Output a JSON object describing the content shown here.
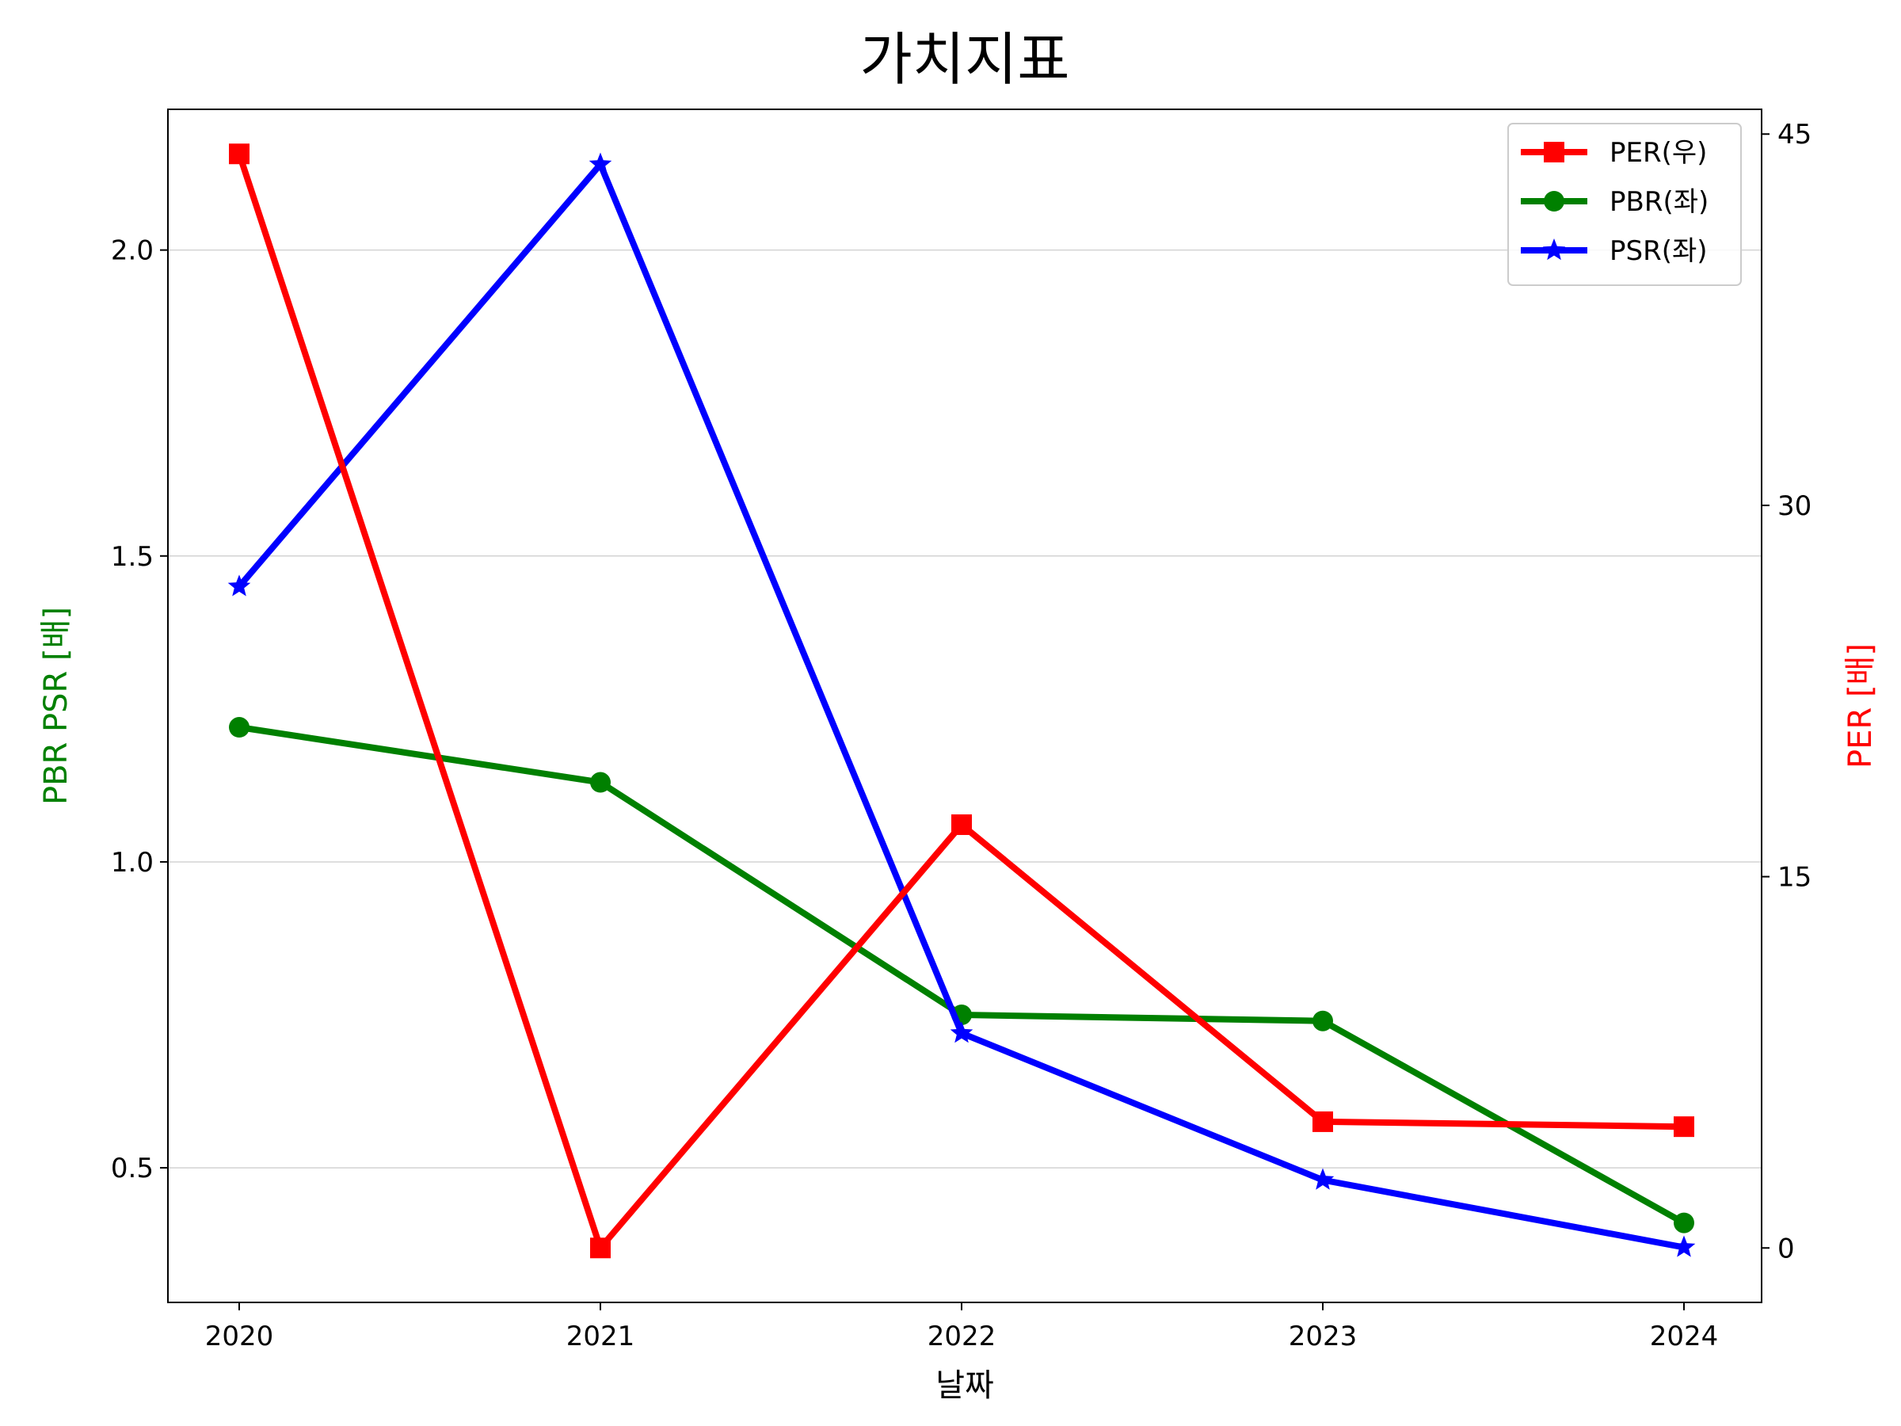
{
  "chart_data": {
    "type": "line",
    "title": "가치지표",
    "xlabel": "날짜",
    "ylabel_left": "PBR PSR [배]",
    "ylabel_right": "PER [배]",
    "categories": [
      "2020",
      "2021",
      "2022",
      "2023",
      "2024"
    ],
    "left_axis": {
      "ylim": [
        0.28,
        2.23
      ],
      "ticks": [
        0.5,
        1.0,
        1.5,
        2.0
      ],
      "tick_labels": [
        "0.5",
        "1.0",
        "1.5",
        "2.0"
      ],
      "label_color": "#008000"
    },
    "right_axis": {
      "ylim": [
        -2.2,
        46.0
      ],
      "ticks": [
        0,
        15,
        30,
        45
      ],
      "tick_labels": [
        "0",
        "15",
        "30",
        "45"
      ],
      "label_color": "#ff0000"
    },
    "grid": "horizontal (left axis)",
    "legend_position": "top-right",
    "series": [
      {
        "name": "PER(우)",
        "axis": "right",
        "color": "#ff0000",
        "marker": "square",
        "values": [
          44.2,
          0.0,
          17.1,
          5.1,
          4.9
        ]
      },
      {
        "name": "PBR(좌)",
        "axis": "left",
        "color": "#008000",
        "marker": "circle",
        "values": [
          1.22,
          1.13,
          0.75,
          0.74,
          0.41
        ]
      },
      {
        "name": "PSR(좌)",
        "axis": "left",
        "color": "#0000ff",
        "marker": "star",
        "values": [
          1.45,
          2.14,
          0.72,
          0.48,
          0.37
        ]
      }
    ]
  }
}
